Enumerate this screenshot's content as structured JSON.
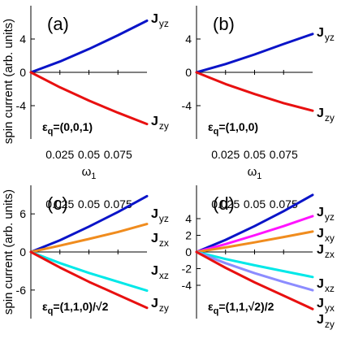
{
  "figure": {
    "ylabel": "spin current (arb. units)",
    "xlabel": "ω₁"
  },
  "chart_data": [
    {
      "type": "line",
      "panel_label": "(a)",
      "polarization_label": "ε",
      "polarization_sub": "q",
      "polarization_value": "=(0,0,1)",
      "xlim": [
        0,
        0.1
      ],
      "ylim": [
        -8,
        8
      ],
      "x_ticks": [
        0.025,
        0.05,
        0.075
      ],
      "x_tick_labels": [
        "0.025",
        "0.05",
        "0.075"
      ],
      "x_tick_labels_shown": true,
      "xlabel": "ω",
      "xlabel_sub": "1",
      "y_ticks": [
        4,
        0,
        -4
      ],
      "y_tick_labels": [
        "4",
        "0",
        "-4"
      ],
      "series": [
        {
          "name": "J",
          "name_sub": "yz",
          "color": "#0a14c8",
          "x": [
            0,
            0.025,
            0.05,
            0.075,
            0.1
          ],
          "y": [
            0,
            1.3,
            2.8,
            4.45,
            6.2
          ]
        },
        {
          "name": "J",
          "name_sub": "zy",
          "color": "#e81010",
          "x": [
            0,
            0.025,
            0.05,
            0.075,
            0.1
          ],
          "y": [
            0,
            -1.8,
            -3.4,
            -4.85,
            -6.2
          ]
        }
      ]
    },
    {
      "type": "line",
      "panel_label": "(b)",
      "polarization_label": "ε",
      "polarization_sub": "q",
      "polarization_value": "=(1,0,0)",
      "xlim": [
        0,
        0.1
      ],
      "ylim": [
        -8,
        8
      ],
      "x_ticks": [
        0.025,
        0.05,
        0.075
      ],
      "x_tick_labels": [
        "0.025",
        "0.05",
        "0.075"
      ],
      "x_tick_labels_shown": true,
      "xlabel": "ω",
      "xlabel_sub": "1",
      "y_ticks": [
        4,
        0,
        -4
      ],
      "y_tick_labels": [
        "4",
        "0",
        "-4"
      ],
      "series": [
        {
          "name": "J",
          "name_sub": "yz",
          "color": "#0a14c8",
          "x": [
            0,
            0.025,
            0.05,
            0.075,
            0.1
          ],
          "y": [
            0,
            1.0,
            2.15,
            3.4,
            4.6
          ]
        },
        {
          "name": "J",
          "name_sub": "zy",
          "color": "#e81010",
          "x": [
            0,
            0.025,
            0.05,
            0.075,
            0.1
          ],
          "y": [
            0,
            -1.4,
            -2.6,
            -3.7,
            -4.6
          ]
        }
      ]
    },
    {
      "type": "line",
      "panel_label": "(c)",
      "polarization_label": "ε",
      "polarization_sub": "q",
      "polarization_value": "=(1,1,0)/√2",
      "xlim": [
        0,
        0.1
      ],
      "ylim": [
        -10.5,
        10.5
      ],
      "x_ticks": [
        0.025,
        0.05,
        0.075
      ],
      "x_tick_labels": [
        "0.025",
        "0.05",
        "0.075"
      ],
      "x_tick_labels_shown": true,
      "y_ticks": [
        6,
        0,
        -6
      ],
      "y_tick_labels": [
        "6",
        "0",
        "-6"
      ],
      "series": [
        {
          "name": "J",
          "name_sub": "yz",
          "color": "#0a14c8",
          "x": [
            0,
            0.025,
            0.05,
            0.075,
            0.1
          ],
          "y": [
            0,
            1.85,
            4.0,
            6.3,
            8.8
          ]
        },
        {
          "name": "J",
          "name_sub": "zx",
          "color": "#f08c1e",
          "x": [
            0,
            0.025,
            0.05,
            0.075,
            0.1
          ],
          "y": [
            0,
            1.0,
            2.05,
            3.15,
            4.4
          ]
        },
        {
          "name": "J",
          "name_sub": "xz",
          "color": "#00e8e8",
          "x": [
            0,
            0.025,
            0.05,
            0.075,
            0.1
          ],
          "y": [
            0,
            -1.75,
            -3.3,
            -4.7,
            -6.1
          ]
        },
        {
          "name": "J",
          "name_sub": "zy",
          "color": "#e81010",
          "x": [
            0,
            0.025,
            0.05,
            0.075,
            0.1
          ],
          "y": [
            0,
            -2.45,
            -4.7,
            -6.75,
            -8.8
          ]
        }
      ]
    },
    {
      "type": "line",
      "panel_label": "(d)",
      "polarization_label": "ε",
      "polarization_sub": "q",
      "polarization_value": "=(1,1,√2)/2",
      "xlim": [
        0,
        0.1
      ],
      "ylim": [
        -8,
        8
      ],
      "x_ticks": [
        0.025,
        0.05,
        0.075
      ],
      "x_tick_labels": [
        "0.025",
        "0.05",
        "0.075"
      ],
      "x_tick_labels_shown": false,
      "y_ticks": [
        4,
        2,
        0,
        -2,
        -4
      ],
      "y_tick_labels": [
        "4",
        "2",
        "0",
        "-2",
        "-4"
      ],
      "series": [
        {
          "name": "J",
          "name_sub": "yz",
          "color": "#0a14c8",
          "x": [
            0,
            0.025,
            0.05,
            0.075,
            0.1
          ],
          "y": [
            0,
            1.45,
            3.1,
            4.9,
            6.85
          ]
        },
        {
          "name": "J",
          "name_sub": "xy",
          "color": "#ff14ff",
          "x": [
            0,
            0.025,
            0.05,
            0.075,
            0.1
          ],
          "y": [
            0,
            0.95,
            2.0,
            3.1,
            4.3
          ]
        },
        {
          "name": "J",
          "name_sub": "zx",
          "color": "#f08c1e",
          "x": [
            0,
            0.025,
            0.05,
            0.075,
            0.1
          ],
          "y": [
            0,
            0.55,
            1.15,
            1.8,
            2.45
          ]
        },
        {
          "name": "J",
          "name_sub": "xz",
          "color": "#00e8e8",
          "x": [
            0,
            0.025,
            0.05,
            0.075,
            0.1
          ],
          "y": [
            0,
            -0.85,
            -1.6,
            -2.3,
            -3.0
          ]
        },
        {
          "name": "J",
          "name_sub": "yx",
          "color": "#8c8cff",
          "x": [
            0,
            0.025,
            0.05,
            0.075,
            0.1
          ],
          "y": [
            0,
            -1.35,
            -2.55,
            -3.6,
            -4.6
          ]
        },
        {
          "name": "J",
          "name_sub": "zy",
          "color": "#e81010",
          "x": [
            0,
            0.025,
            0.05,
            0.075,
            0.1
          ],
          "y": [
            0,
            -1.9,
            -3.65,
            -5.25,
            -6.85
          ]
        }
      ]
    }
  ]
}
